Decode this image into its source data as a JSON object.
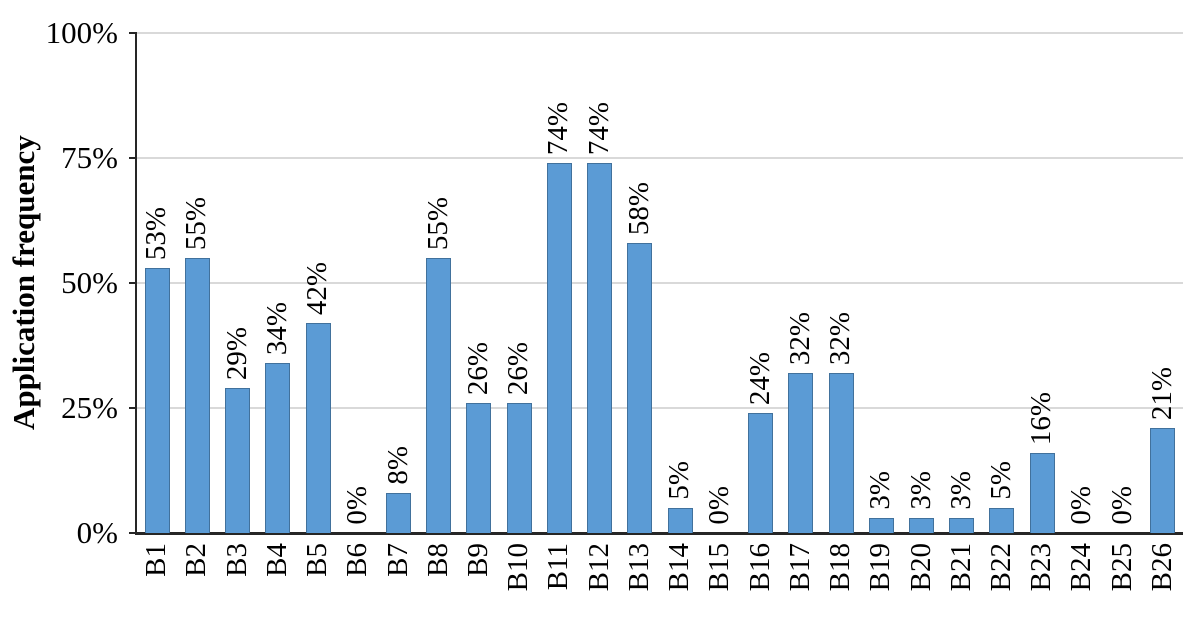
{
  "chart_data": {
    "type": "bar",
    "title": "",
    "ylabel": "Application frequency",
    "xlabel": "",
    "ylim": [
      0,
      100
    ],
    "ytick_interval": 25,
    "yticks": [
      "0%",
      "25%",
      "50%",
      "75%",
      "100%"
    ],
    "grid": "horizontal",
    "legend": "none",
    "categories": [
      "B1",
      "B2",
      "B3",
      "B4",
      "B5",
      "B6",
      "B7",
      "B8",
      "B9",
      "B10",
      "B11",
      "B12",
      "B13",
      "B14",
      "B15",
      "B16",
      "B17",
      "B18",
      "B19",
      "B20",
      "B21",
      "B22",
      "B23",
      "B24",
      "B25",
      "B26"
    ],
    "values": [
      53,
      55,
      29,
      34,
      42,
      0,
      8,
      55,
      26,
      26,
      74,
      74,
      58,
      5,
      0,
      24,
      32,
      32,
      3,
      3,
      3,
      5,
      16,
      0,
      0,
      21
    ],
    "bar_labels": [
      "53%",
      "55%",
      "29%",
      "34%",
      "42%",
      "0%",
      "8%",
      "55%",
      "26%",
      "26%",
      "74%",
      "74%",
      "58%",
      "5%",
      "0%",
      "24%",
      "32%",
      "32%",
      "3%",
      "3%",
      "3%",
      "5%",
      "16%",
      "0%",
      "0%",
      "21%"
    ],
    "colors": {
      "bar_fill": "#5B9BD5",
      "bar_border": "#41719C",
      "gridline": "#D9D9D9",
      "axis": "#262626",
      "text": "#000000"
    }
  }
}
